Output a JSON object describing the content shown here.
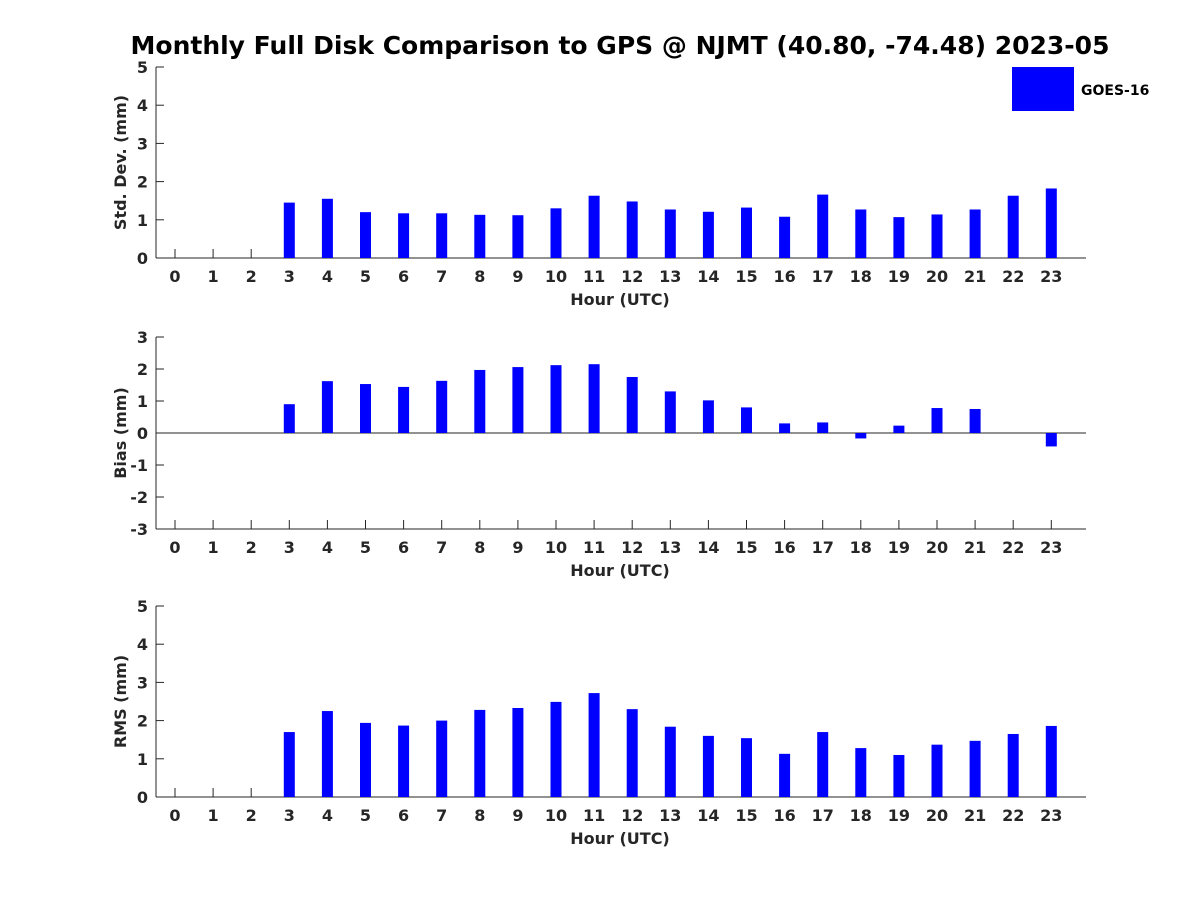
{
  "figure": {
    "title": "Monthly Full Disk Comparison to GPS @ NJMT (40.80, -74.48) 2023-05",
    "legend": {
      "label": "GOES-16",
      "placement": "top-right"
    },
    "bar_color": "#0000ff"
  },
  "chart_data": [
    {
      "type": "bar",
      "xlabel": "Hour (UTC)",
      "ylabel": "Std. Dev. (mm)",
      "ylim": [
        0,
        5
      ],
      "yticks": [
        0,
        1,
        2,
        3,
        4,
        5
      ],
      "categories": [
        "0",
        "1",
        "2",
        "3",
        "4",
        "5",
        "6",
        "7",
        "8",
        "9",
        "10",
        "11",
        "12",
        "13",
        "14",
        "15",
        "16",
        "17",
        "18",
        "19",
        "20",
        "21",
        "22",
        "23"
      ],
      "series": [
        {
          "name": "GOES-16",
          "values": [
            null,
            null,
            null,
            1.45,
            1.55,
            1.2,
            1.17,
            1.17,
            1.13,
            1.12,
            1.3,
            1.63,
            1.48,
            1.27,
            1.21,
            1.32,
            1.08,
            1.66,
            1.27,
            1.07,
            1.14,
            1.27,
            1.63,
            1.82
          ]
        }
      ]
    },
    {
      "type": "bar",
      "xlabel": "Hour (UTC)",
      "ylabel": "Bias (mm)",
      "ylim": [
        -3,
        3
      ],
      "yticks": [
        -3,
        -2,
        -1,
        0,
        1,
        2,
        3
      ],
      "categories": [
        "0",
        "1",
        "2",
        "3",
        "4",
        "5",
        "6",
        "7",
        "8",
        "9",
        "10",
        "11",
        "12",
        "13",
        "14",
        "15",
        "16",
        "17",
        "18",
        "19",
        "20",
        "21",
        "22",
        "23"
      ],
      "series": [
        {
          "name": "GOES-16",
          "values": [
            null,
            null,
            null,
            0.9,
            1.62,
            1.53,
            1.44,
            1.63,
            1.97,
            2.06,
            2.12,
            2.15,
            1.75,
            1.3,
            1.02,
            0.8,
            0.3,
            0.33,
            -0.17,
            0.23,
            0.78,
            0.75,
            null,
            -0.42
          ]
        }
      ]
    },
    {
      "type": "bar",
      "xlabel": "Hour (UTC)",
      "ylabel": "RMS (mm)",
      "ylim": [
        0,
        5
      ],
      "yticks": [
        0,
        1,
        2,
        3,
        4,
        5
      ],
      "categories": [
        "0",
        "1",
        "2",
        "3",
        "4",
        "5",
        "6",
        "7",
        "8",
        "9",
        "10",
        "11",
        "12",
        "13",
        "14",
        "15",
        "16",
        "17",
        "18",
        "19",
        "20",
        "21",
        "22",
        "23"
      ],
      "series": [
        {
          "name": "GOES-16",
          "values": [
            null,
            null,
            null,
            1.7,
            2.25,
            1.94,
            1.87,
            2.0,
            2.28,
            2.33,
            2.49,
            2.72,
            2.3,
            1.84,
            1.6,
            1.54,
            1.13,
            1.7,
            1.28,
            1.1,
            1.37,
            1.47,
            1.65,
            1.86
          ]
        }
      ]
    }
  ]
}
